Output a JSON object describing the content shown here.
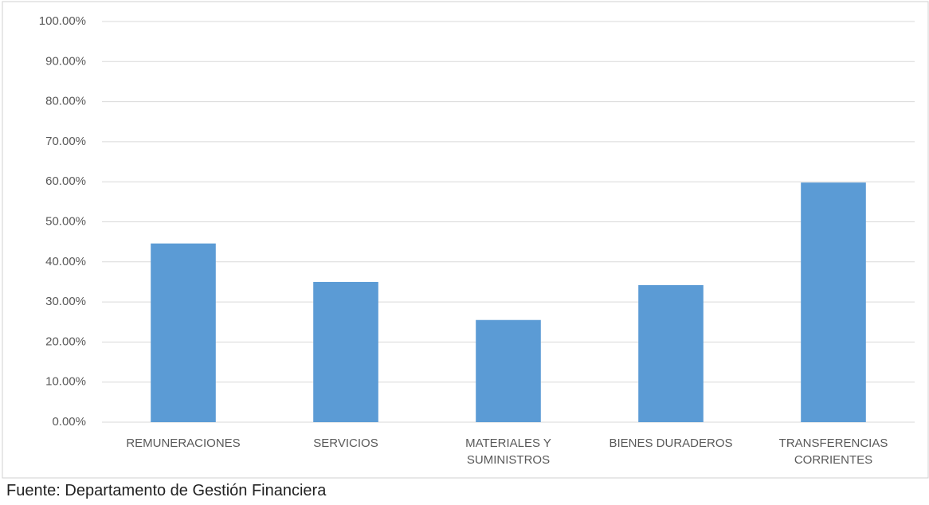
{
  "chart_data": {
    "type": "bar",
    "categories": [
      "REMUNERACIONES",
      "SERVICIOS",
      "MATERIALES Y SUMINISTROS",
      "BIENES DURADEROS",
      "TRANSFERENCIAS CORRIENTES"
    ],
    "values": [
      44.6,
      35.0,
      25.5,
      34.2,
      59.8
    ],
    "color": "#5b9bd5",
    "ylim": [
      0,
      100
    ],
    "yticks": [
      {
        "value": 0,
        "label": "0.00%"
      },
      {
        "value": 10,
        "label": "10.00%"
      },
      {
        "value": 20,
        "label": "20.00%"
      },
      {
        "value": 30,
        "label": "30.00%"
      },
      {
        "value": 40,
        "label": "40.00%"
      },
      {
        "value": 50,
        "label": "50.00%"
      },
      {
        "value": 60,
        "label": "60.00%"
      },
      {
        "value": 70,
        "label": "70.00%"
      },
      {
        "value": 80,
        "label": "80.00%"
      },
      {
        "value": 90,
        "label": "90.00%"
      },
      {
        "value": 100,
        "label": "100.00%"
      }
    ],
    "grid": true,
    "source": "Fuente: Departamento de Gestión Financiera"
  }
}
